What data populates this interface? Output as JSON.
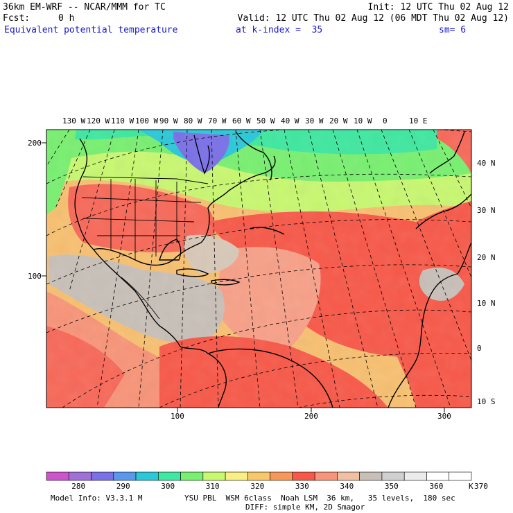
{
  "header": {
    "model_title": "36km EM-WRF -- NCAR/MMM for TC",
    "init": "Init: 12 UTC Thu 02 Aug 12",
    "fcst_label": "Fcst:",
    "fcst_value": "0 h",
    "valid": "Valid: 12 UTC Thu 02 Aug 12 (06 MDT Thu 02 Aug 12)",
    "field_name": "Equivalent potential temperature",
    "level": "at k-index =  35",
    "smoothing": "sm= 6"
  },
  "map": {
    "top_lon_labels": [
      "130 W",
      "120 W",
      "110 W",
      "100 W",
      "90 W",
      "80 W",
      "70 W",
      "60 W",
      "50 W",
      "40 W",
      "30 W",
      "20 W",
      "10 W",
      "0",
      "10 E"
    ],
    "right_lat_labels": [
      "40 N",
      "30 N",
      "20 N",
      "10 N",
      "0",
      "10 S"
    ],
    "left_grid_labels": [
      "200",
      "100"
    ],
    "bottom_grid_labels": [
      "100",
      "200",
      "300"
    ]
  },
  "colorbar": {
    "labels": [
      "280",
      "290",
      "300",
      "310",
      "320",
      "330",
      "340",
      "350",
      "360",
      "370"
    ],
    "unit": "K",
    "colors": [
      "#cc55cc",
      "#a070d8",
      "#7a70e8",
      "#5a98ee",
      "#2ac8d8",
      "#3ee8a0",
      "#78f070",
      "#c8f870",
      "#f8f080",
      "#f8c868",
      "#f89858",
      "#f85848",
      "#f89478",
      "#f0c0a0",
      "#c8c0b8",
      "#d0d0d0",
      "#ececec",
      "#ffffff",
      "#ffffff"
    ]
  },
  "footer": {
    "model_info": "Model Info: V3.3.1 M",
    "physics": "YSU PBL  WSM 6class  Noah LSM  36 km,   35 levels,  180 sec",
    "diffusion": "DIFF: simple KM, 2D Smagor"
  }
}
